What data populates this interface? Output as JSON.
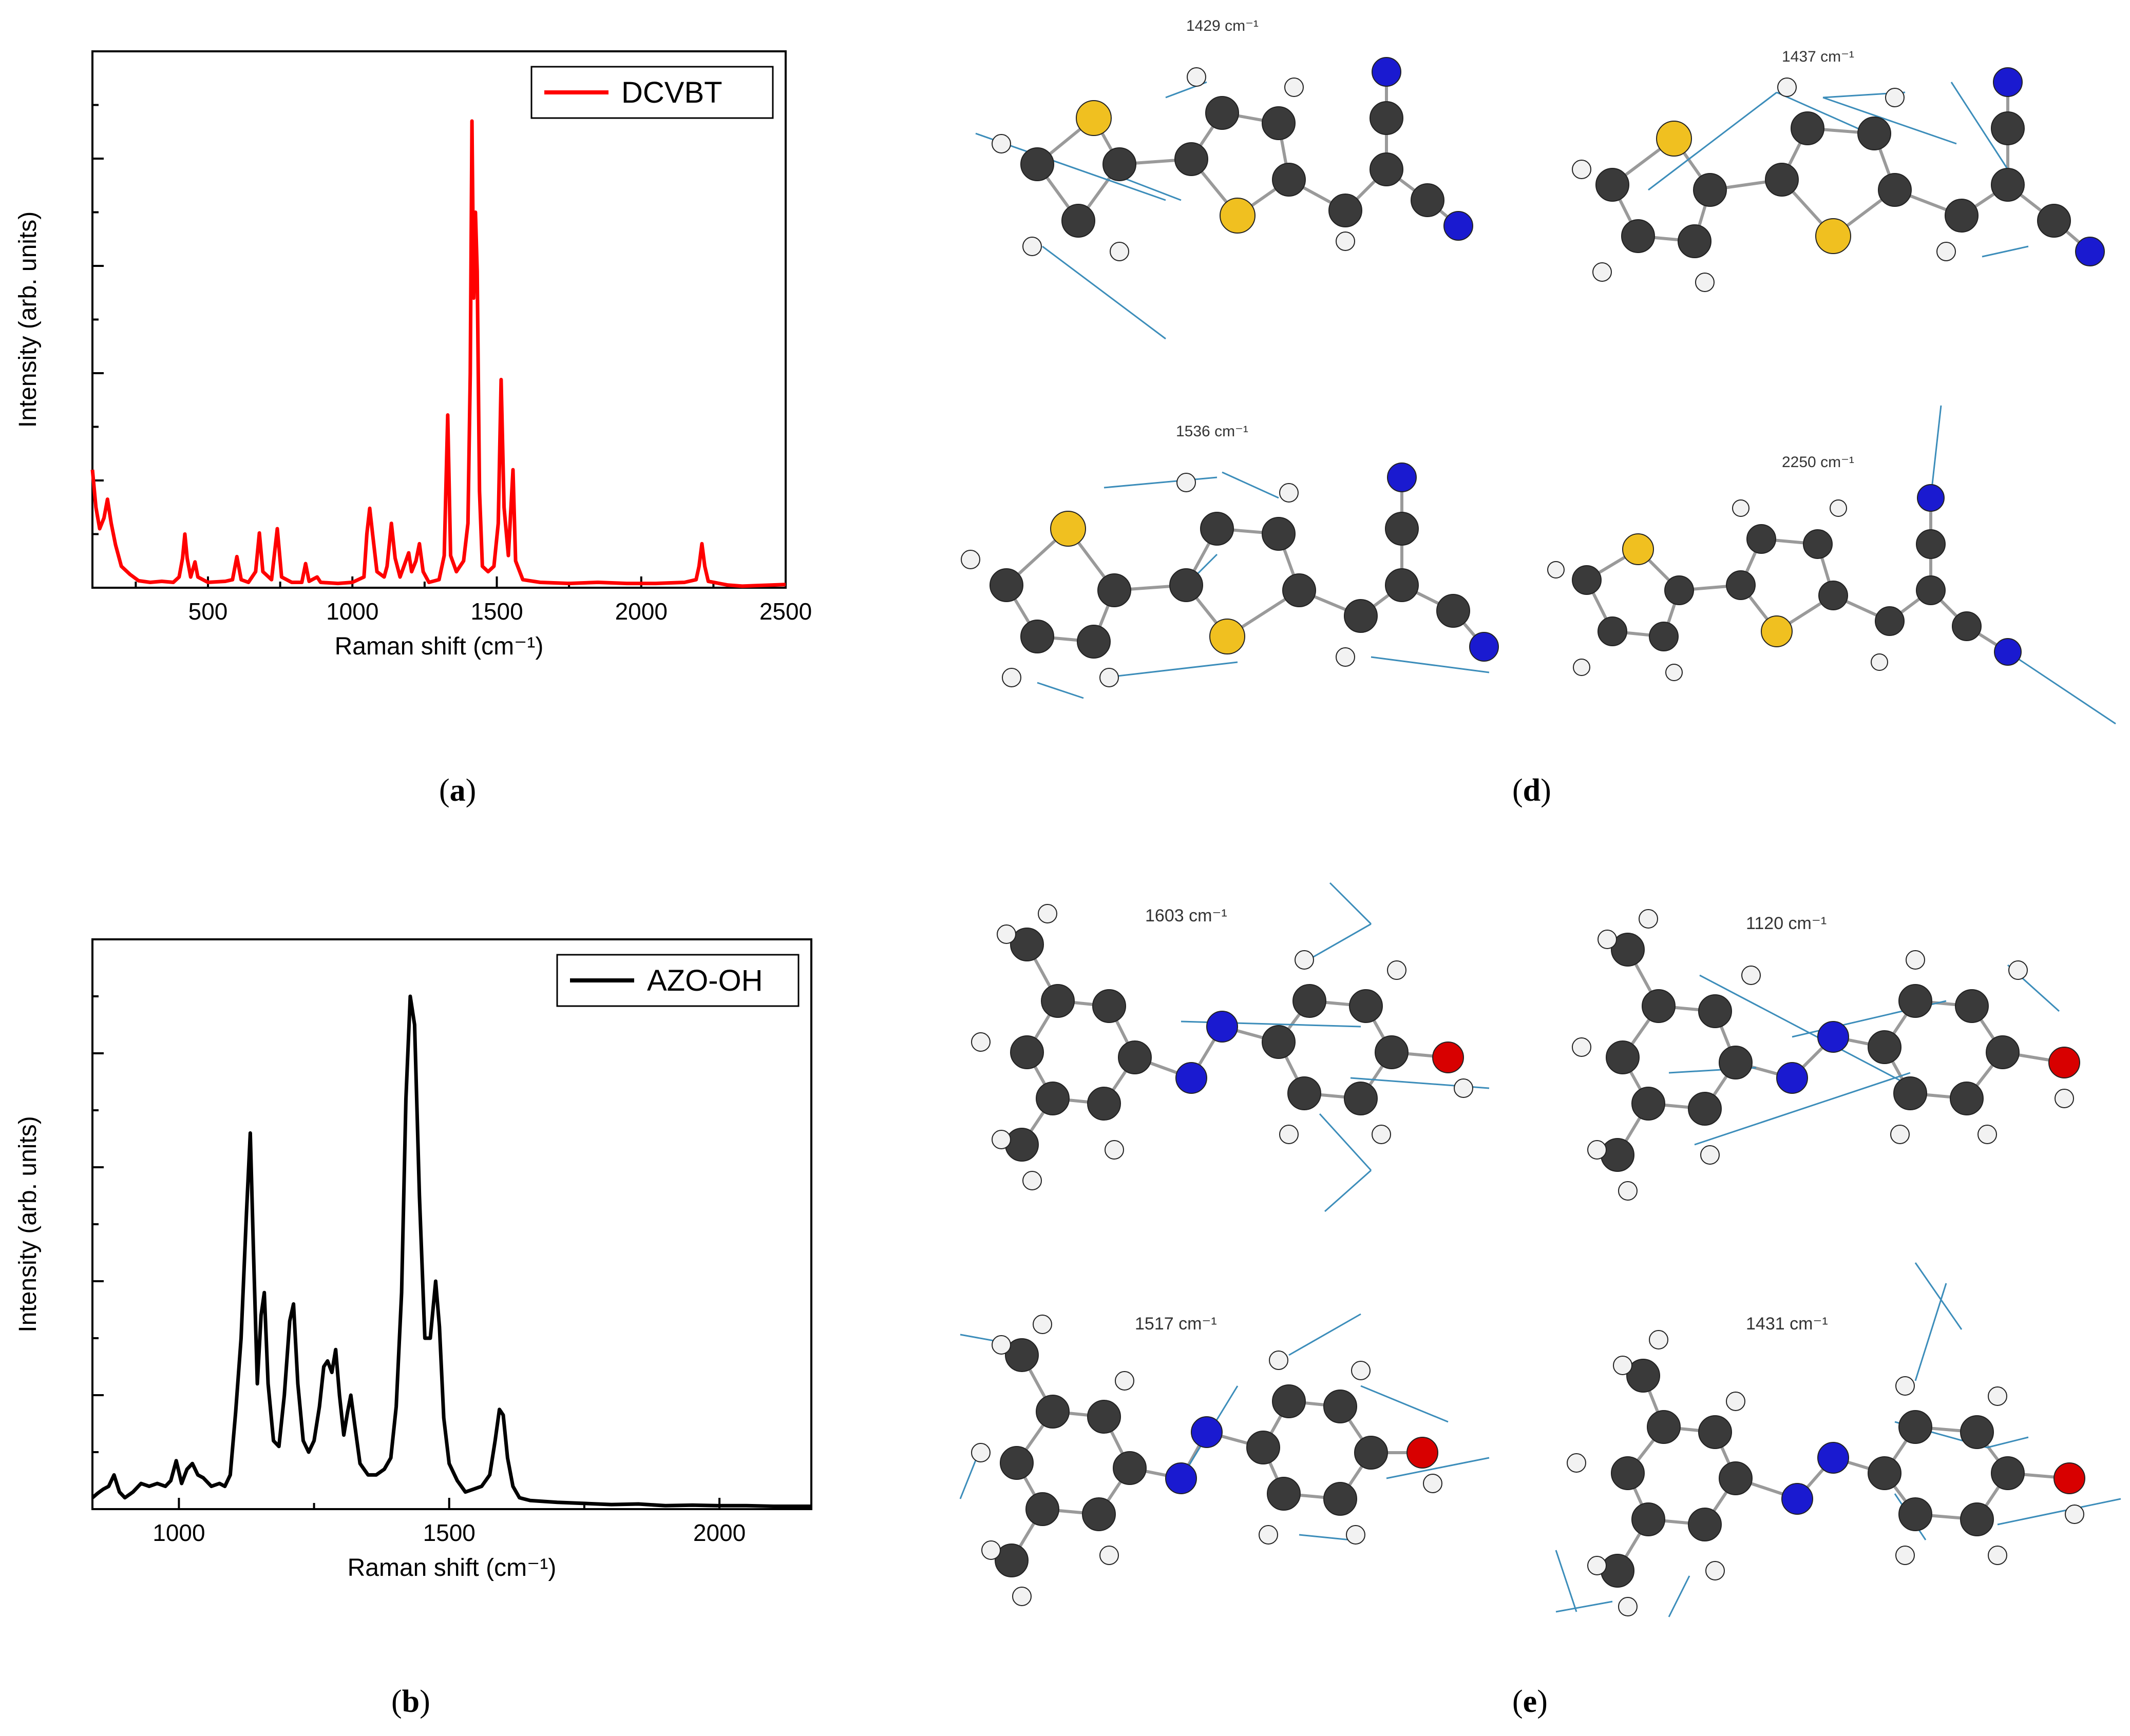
{
  "colors": {
    "carbon": "#3a3a3a",
    "hydrogen": "#f2f2f2",
    "nitrogen": "#1a1ad0",
    "sulfur": "#f0c020",
    "oxygen": "#d80000",
    "vector": "#3c8dba",
    "bond": "#9a9a9a",
    "red": "#ff0000",
    "black": "#000000"
  },
  "chart_data": [
    {
      "id": "a",
      "type": "line",
      "title": "",
      "xlabel": "Raman shift (cm⁻¹)",
      "ylabel": "Intensity (arb. units)",
      "xlim": [
        100,
        2500
      ],
      "ylim": [
        0,
        1.0
      ],
      "xticks": [
        500,
        1000,
        1500,
        2000,
        2500
      ],
      "legend_position": "top-right",
      "grid": false,
      "series": [
        {
          "name": "DCVBT",
          "color": "#ff0000",
          "points": [
            [
              100,
              0.22
            ],
            [
              112,
              0.15
            ],
            [
              125,
              0.11
            ],
            [
              140,
              0.13
            ],
            [
              152,
              0.165
            ],
            [
              165,
              0.12
            ],
            [
              180,
              0.08
            ],
            [
              200,
              0.04
            ],
            [
              230,
              0.025
            ],
            [
              260,
              0.013
            ],
            [
              300,
              0.01
            ],
            [
              340,
              0.012
            ],
            [
              380,
              0.01
            ],
            [
              400,
              0.02
            ],
            [
              412,
              0.055
            ],
            [
              420,
              0.1
            ],
            [
              428,
              0.055
            ],
            [
              440,
              0.02
            ],
            [
              455,
              0.048
            ],
            [
              465,
              0.02
            ],
            [
              500,
              0.01
            ],
            [
              560,
              0.012
            ],
            [
              585,
              0.015
            ],
            [
              600,
              0.058
            ],
            [
              615,
              0.015
            ],
            [
              640,
              0.01
            ],
            [
              665,
              0.03
            ],
            [
              678,
              0.102
            ],
            [
              690,
              0.03
            ],
            [
              720,
              0.015
            ],
            [
              740,
              0.11
            ],
            [
              755,
              0.02
            ],
            [
              790,
              0.01
            ],
            [
              825,
              0.01
            ],
            [
              838,
              0.045
            ],
            [
              850,
              0.012
            ],
            [
              878,
              0.02
            ],
            [
              890,
              0.01
            ],
            [
              950,
              0.008
            ],
            [
              1000,
              0.01
            ],
            [
              1040,
              0.02
            ],
            [
              1050,
              0.1
            ],
            [
              1060,
              0.148
            ],
            [
              1070,
              0.1
            ],
            [
              1085,
              0.03
            ],
            [
              1110,
              0.02
            ],
            [
              1120,
              0.04
            ],
            [
              1135,
              0.12
            ],
            [
              1148,
              0.055
            ],
            [
              1165,
              0.02
            ],
            [
              1185,
              0.05
            ],
            [
              1195,
              0.065
            ],
            [
              1205,
              0.03
            ],
            [
              1220,
              0.05
            ],
            [
              1232,
              0.082
            ],
            [
              1245,
              0.03
            ],
            [
              1265,
              0.01
            ],
            [
              1300,
              0.015
            ],
            [
              1318,
              0.06
            ],
            [
              1330,
              0.322
            ],
            [
              1340,
              0.06
            ],
            [
              1360,
              0.03
            ],
            [
              1385,
              0.05
            ],
            [
              1400,
              0.12
            ],
            [
              1408,
              0.4
            ],
            [
              1414,
              0.87
            ],
            [
              1420,
              0.54
            ],
            [
              1426,
              0.7
            ],
            [
              1432,
              0.59
            ],
            [
              1440,
              0.18
            ],
            [
              1450,
              0.04
            ],
            [
              1470,
              0.03
            ],
            [
              1490,
              0.04
            ],
            [
              1505,
              0.12
            ],
            [
              1515,
              0.388
            ],
            [
              1525,
              0.15
            ],
            [
              1540,
              0.06
            ],
            [
              1548,
              0.14
            ],
            [
              1556,
              0.22
            ],
            [
              1565,
              0.05
            ],
            [
              1590,
              0.015
            ],
            [
              1650,
              0.01
            ],
            [
              1750,
              0.008
            ],
            [
              1850,
              0.01
            ],
            [
              1950,
              0.008
            ],
            [
              2050,
              0.008
            ],
            [
              2150,
              0.01
            ],
            [
              2190,
              0.015
            ],
            [
              2200,
              0.04
            ],
            [
              2210,
              0.082
            ],
            [
              2220,
              0.04
            ],
            [
              2232,
              0.012
            ],
            [
              2300,
              0.005
            ],
            [
              2350,
              0.003
            ],
            [
              2400,
              0.004
            ],
            [
              2450,
              0.005
            ],
            [
              2500,
              0.006
            ]
          ]
        }
      ]
    },
    {
      "id": "b",
      "type": "line",
      "title": "",
      "xlabel": "Raman shift (cm⁻¹)",
      "ylabel": "Intensity (arb. units)",
      "xlim": [
        840,
        2170
      ],
      "ylim": [
        0,
        1.0
      ],
      "xticks": [
        1000,
        1500,
        2000
      ],
      "legend_position": "top-right",
      "grid": false,
      "series": [
        {
          "name": "AZO-OH",
          "color": "#000000",
          "points": [
            [
              840,
              0.02
            ],
            [
              850,
              0.028
            ],
            [
              860,
              0.035
            ],
            [
              870,
              0.04
            ],
            [
              880,
              0.06
            ],
            [
              890,
              0.03
            ],
            [
              900,
              0.02
            ],
            [
              915,
              0.03
            ],
            [
              930,
              0.045
            ],
            [
              945,
              0.04
            ],
            [
              960,
              0.045
            ],
            [
              975,
              0.04
            ],
            [
              985,
              0.05
            ],
            [
              995,
              0.085
            ],
            [
              1005,
              0.045
            ],
            [
              1015,
              0.07
            ],
            [
              1025,
              0.08
            ],
            [
              1035,
              0.06
            ],
            [
              1045,
              0.055
            ],
            [
              1060,
              0.04
            ],
            [
              1075,
              0.045
            ],
            [
              1085,
              0.04
            ],
            [
              1095,
              0.06
            ],
            [
              1105,
              0.17
            ],
            [
              1115,
              0.3
            ],
            [
              1125,
              0.52
            ],
            [
              1132,
              0.66
            ],
            [
              1138,
              0.45
            ],
            [
              1145,
              0.22
            ],
            [
              1152,
              0.34
            ],
            [
              1158,
              0.38
            ],
            [
              1165,
              0.22
            ],
            [
              1175,
              0.12
            ],
            [
              1185,
              0.11
            ],
            [
              1195,
              0.2
            ],
            [
              1205,
              0.33
            ],
            [
              1212,
              0.36
            ],
            [
              1220,
              0.22
            ],
            [
              1230,
              0.12
            ],
            [
              1240,
              0.1
            ],
            [
              1250,
              0.12
            ],
            [
              1260,
              0.18
            ],
            [
              1268,
              0.25
            ],
            [
              1275,
              0.26
            ],
            [
              1283,
              0.24
            ],
            [
              1290,
              0.28
            ],
            [
              1297,
              0.2
            ],
            [
              1305,
              0.13
            ],
            [
              1312,
              0.17
            ],
            [
              1318,
              0.2
            ],
            [
              1325,
              0.15
            ],
            [
              1335,
              0.08
            ],
            [
              1350,
              0.06
            ],
            [
              1365,
              0.06
            ],
            [
              1380,
              0.07
            ],
            [
              1392,
              0.09
            ],
            [
              1402,
              0.18
            ],
            [
              1412,
              0.38
            ],
            [
              1420,
              0.72
            ],
            [
              1428,
              0.9
            ],
            [
              1436,
              0.85
            ],
            [
              1445,
              0.55
            ],
            [
              1455,
              0.3
            ],
            [
              1465,
              0.3
            ],
            [
              1475,
              0.4
            ],
            [
              1482,
              0.32
            ],
            [
              1490,
              0.16
            ],
            [
              1500,
              0.08
            ],
            [
              1515,
              0.05
            ],
            [
              1530,
              0.03
            ],
            [
              1545,
              0.035
            ],
            [
              1560,
              0.04
            ],
            [
              1575,
              0.06
            ],
            [
              1585,
              0.12
            ],
            [
              1593,
              0.175
            ],
            [
              1600,
              0.165
            ],
            [
              1608,
              0.09
            ],
            [
              1618,
              0.04
            ],
            [
              1630,
              0.02
            ],
            [
              1650,
              0.015
            ],
            [
              1700,
              0.012
            ],
            [
              1750,
              0.01
            ],
            [
              1800,
              0.008
            ],
            [
              1850,
              0.009
            ],
            [
              1900,
              0.006
            ],
            [
              1950,
              0.007
            ],
            [
              2000,
              0.006
            ],
            [
              2050,
              0.006
            ],
            [
              2100,
              0.005
            ],
            [
              2170,
              0.005
            ]
          ]
        }
      ]
    }
  ],
  "panels": {
    "a": "a",
    "b": "b",
    "d": "d",
    "e": "e"
  },
  "molecules": {
    "d1": "1429 cm⁻¹",
    "d2": "1437 cm⁻¹",
    "d3": "1536 cm⁻¹",
    "d4": "2250 cm⁻¹",
    "e1": "1603 cm⁻¹",
    "e2": "1120 cm⁻¹",
    "e3": "1517 cm⁻¹",
    "e4": "1431 cm⁻¹"
  }
}
